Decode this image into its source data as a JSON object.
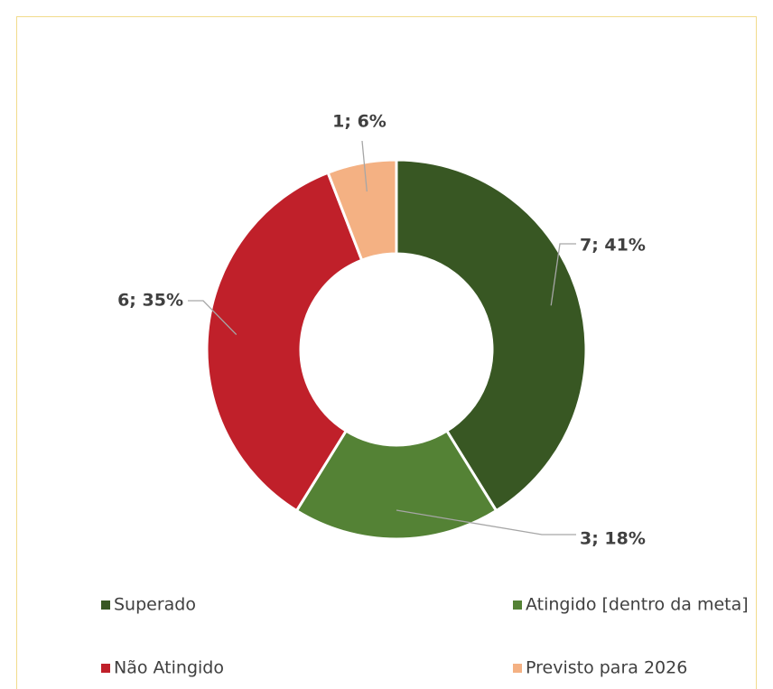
{
  "chart_data": {
    "type": "pie",
    "donut": true,
    "categories": [
      "Superado",
      "Atingido [dentro da meta]",
      "Não Atingido",
      "Previsto para 2026"
    ],
    "values": [
      7,
      3,
      6,
      1
    ],
    "value_labels": [
      "7; 41%",
      "3; 18%",
      "6; 35%",
      "1; 6%"
    ],
    "colors": [
      "#385723",
      "#548235",
      "#c0202a",
      "#f4b183"
    ],
    "legend": "bottom"
  }
}
